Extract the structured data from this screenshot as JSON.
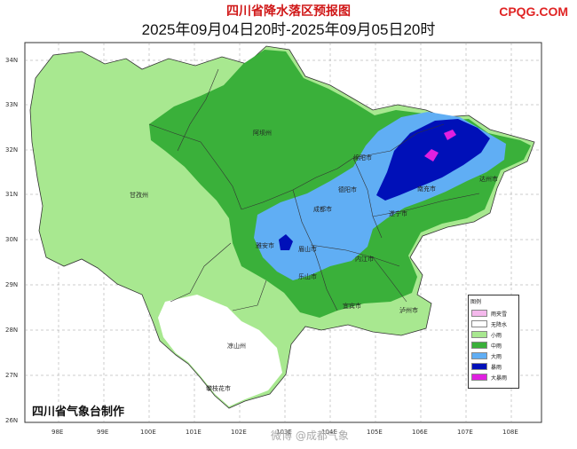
{
  "header": {
    "title": "四川省降水落区预报图",
    "subtitle": "2025年09月04日20时-2025年09月05日20时"
  },
  "watermark": "CPQG.COM",
  "credit": "四川省气象台制作",
  "weibo": "微博 @成都气象",
  "axes": {
    "lat_labels": [
      "34N",
      "33N",
      "32N",
      "31N",
      "30N",
      "29N",
      "28N",
      "27N",
      "26N"
    ],
    "lon_labels": [
      "98E",
      "99E",
      "100E",
      "101E",
      "102E",
      "103E",
      "104E",
      "105E",
      "106E",
      "107E",
      "108E"
    ]
  },
  "cities": [
    {
      "name": "阿坝州"
    },
    {
      "name": "绵阳市"
    },
    {
      "name": "德阳市"
    },
    {
      "name": "成都市"
    },
    {
      "name": "遂宁市"
    },
    {
      "name": "南充市"
    },
    {
      "name": "达州市"
    },
    {
      "name": "甘孜州"
    },
    {
      "name": "雅安市"
    },
    {
      "name": "眉山市"
    },
    {
      "name": "乐山市"
    },
    {
      "name": "内江市"
    },
    {
      "name": "宜宾市"
    },
    {
      "name": "泸州市"
    },
    {
      "name": "凉山州"
    },
    {
      "name": "攀枝花市"
    }
  ],
  "legend": {
    "title": "图例",
    "items": [
      {
        "label": "雨夹雪",
        "color": "#f4b8ec"
      },
      {
        "label": "无降水",
        "color": "#ffffff"
      },
      {
        "label": "小雨",
        "color": "#a8e890"
      },
      {
        "label": "中雨",
        "color": "#3ab03a"
      },
      {
        "label": "大雨",
        "color": "#60aef4"
      },
      {
        "label": "暴雨",
        "color": "#0010b8"
      },
      {
        "label": "大暴雨",
        "color": "#e020e0"
      }
    ]
  }
}
